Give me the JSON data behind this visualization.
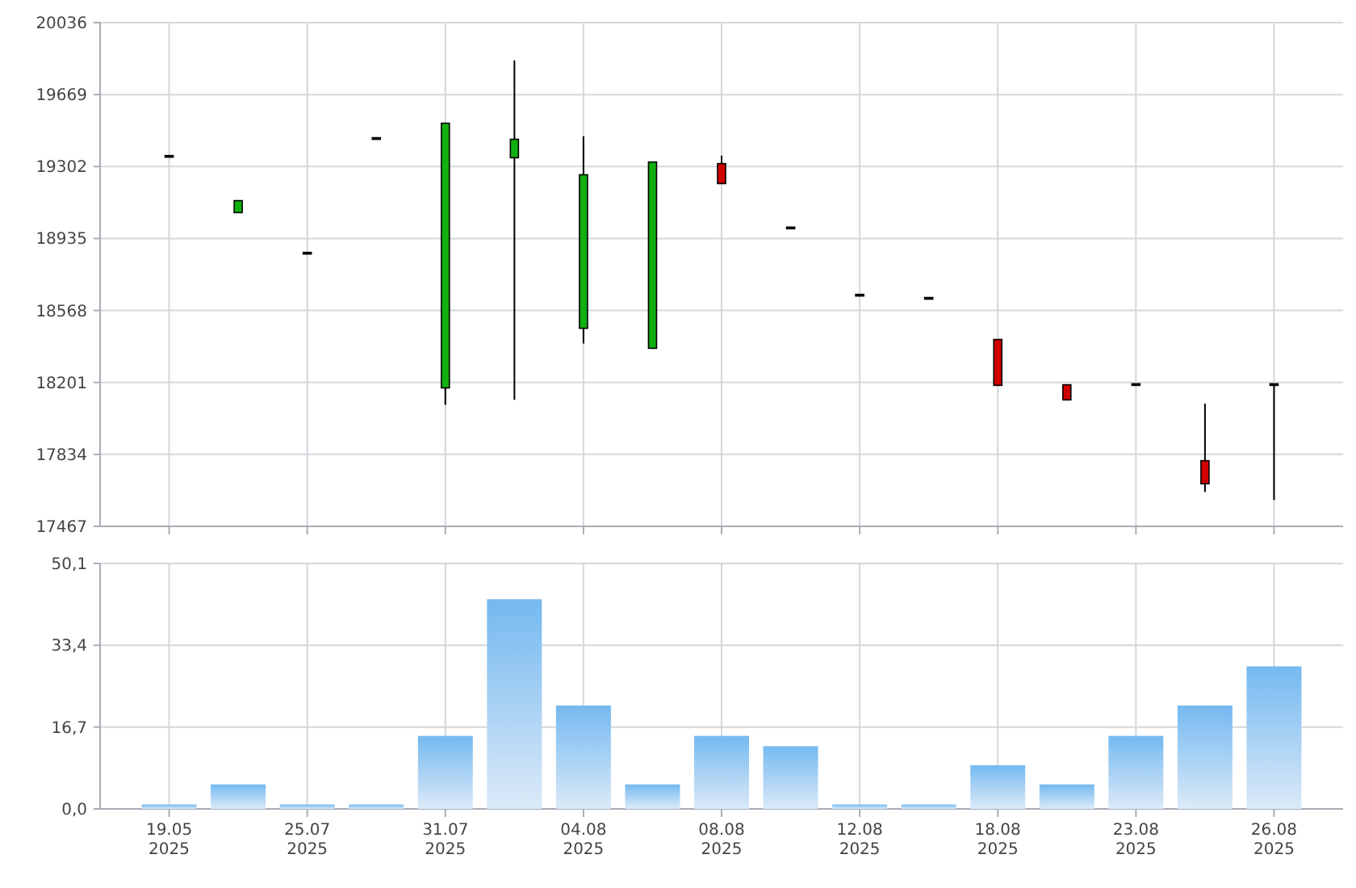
{
  "chart_data": [
    {
      "type": "candlestick",
      "categories": [
        null,
        null,
        null,
        null,
        null,
        null,
        null,
        null,
        null,
        null,
        null,
        null,
        null,
        null,
        null,
        null,
        null
      ],
      "ohlc": [
        [
          19358,
          19358,
          19358,
          19358
        ],
        [
          19067,
          19128,
          19067,
          19128
        ],
        [
          18864,
          18864,
          18864,
          18864
        ],
        [
          19449,
          19449,
          19449,
          19449
        ],
        [
          18173,
          19523,
          18087,
          19523
        ],
        [
          19347,
          19844,
          18112,
          19441
        ],
        [
          18477,
          19457,
          18400,
          19260
        ],
        [
          18375,
          19325,
          18375,
          19325
        ],
        [
          19317,
          19358,
          19215,
          19215
        ],
        [
          18993,
          18993,
          18993,
          18993
        ],
        [
          18650,
          18650,
          18650,
          18650
        ],
        [
          18634,
          18634,
          18634,
          18634
        ],
        [
          18420,
          18420,
          18186,
          18186
        ],
        [
          18189,
          18189,
          18112,
          18112
        ],
        [
          18194,
          18194,
          18194,
          18194
        ],
        [
          17802,
          18093,
          17642,
          17684
        ],
        [
          18194,
          18194,
          17601,
          18194
        ]
      ],
      "colors": [
        "#000000",
        "#10b010",
        "#000000",
        "#000000",
        "#10b010",
        "#10b010",
        "#10b010",
        "#10b010",
        "#d00000",
        "#000000",
        "#000000",
        "#000000",
        "#d00000",
        "#d00000",
        "#000000",
        "#d00000",
        "#000000"
      ],
      "ylim": [
        17467,
        20036
      ],
      "yticks": [
        17467,
        17834,
        18201,
        18568,
        18935,
        19302,
        19669,
        20036
      ],
      "grid": true,
      "tick_labels": "y"
    },
    {
      "type": "bar",
      "categories": [
        "19.05\n2025",
        null,
        "25.07\n2025",
        null,
        "31.07\n2025",
        null,
        "04.08\n2025",
        null,
        "08.08\n2025",
        null,
        "12.08\n2025",
        null,
        "18.08\n2025",
        null,
        "23.08\n2025",
        null,
        "26.08\n2025"
      ],
      "values": [
        0.9,
        5,
        0.9,
        0.9,
        14.9,
        42.8,
        21.1,
        5,
        14.9,
        12.8,
        0.9,
        0.9,
        8.9,
        5,
        14.9,
        21.1,
        29.1
      ],
      "color": "#74b9f0",
      "ylim": [
        0,
        50.1
      ],
      "yticks": [
        {
          "value": 0,
          "label": "0,0"
        },
        {
          "value": 16.7,
          "label": "16,7"
        },
        {
          "value": 33.4,
          "label": "33,4"
        },
        {
          "value": 50.1,
          "label": "50,1"
        }
      ],
      "grid": true
    }
  ]
}
